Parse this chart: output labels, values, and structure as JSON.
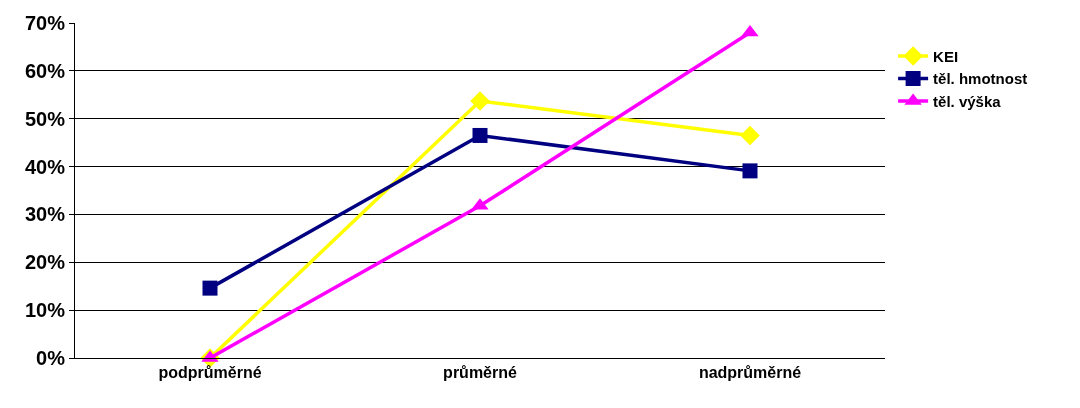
{
  "chart_data": {
    "type": "line",
    "categories": [
      "podprůměrné",
      "průměrné",
      "nadprůměrné"
    ],
    "series": [
      {
        "name": "KEI",
        "color": "#ffff00",
        "marker": "diamond",
        "values": [
          0,
          53.7,
          46.5
        ]
      },
      {
        "name": "těl. hmotnost",
        "color": "#000080",
        "marker": "square",
        "values": [
          14.6,
          46.5,
          39.1
        ]
      },
      {
        "name": "těl. výška",
        "color": "#ff00ff",
        "marker": "triangle",
        "values": [
          0,
          31.8,
          68
        ]
      }
    ],
    "ylim": [
      0,
      70
    ],
    "yticks": [
      {
        "value": 0,
        "label": "0%"
      },
      {
        "value": 10,
        "label": "10%"
      },
      {
        "value": 20,
        "label": "20%"
      },
      {
        "value": 30,
        "label": "30%"
      },
      {
        "value": 40,
        "label": "40%"
      },
      {
        "value": 50,
        "label": "50%"
      },
      {
        "value": 60,
        "label": "60%"
      },
      {
        "value": 70,
        "label": "70%"
      }
    ],
    "grid": "y",
    "legend": "right",
    "line_style": "solid"
  }
}
